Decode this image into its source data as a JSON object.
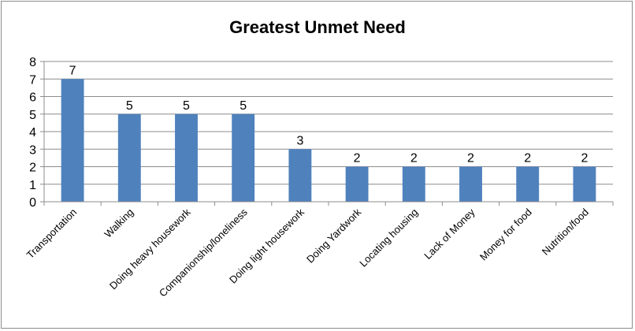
{
  "chart_data": {
    "type": "bar",
    "title": "Greatest Unmet Need",
    "xlabel": "",
    "ylabel": "",
    "categories": [
      "Transportation",
      "Walking",
      "Doing heavy housework",
      "Companionship/loneliness",
      "Doing light housework",
      "Doing Yardwork",
      "Locating housing",
      "Lack of Money",
      "Money for food",
      "Nutrition/food"
    ],
    "values": [
      7,
      5,
      5,
      5,
      3,
      2,
      2,
      2,
      2,
      2
    ],
    "ylim": [
      0,
      8
    ],
    "yticks": [
      "0",
      "1",
      "2",
      "3",
      "4",
      "5",
      "6",
      "7",
      "8"
    ],
    "grid": true,
    "legend": "none",
    "data_labels": true,
    "bar_color": "#4f81bd"
  }
}
